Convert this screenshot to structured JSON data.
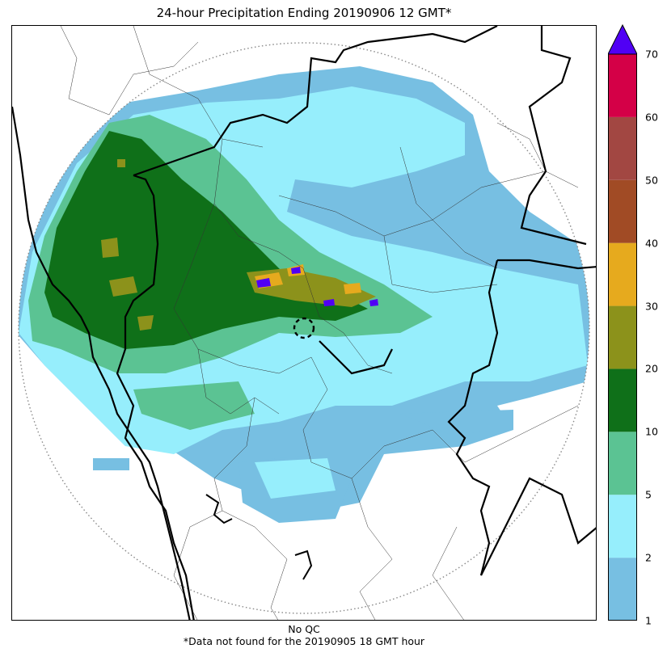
{
  "title": "24-hour Precipitation Ending 20190906 12 GMT*",
  "footer": {
    "qc_note": "No QC",
    "missing_note": "*Data not found for the 20190905 18 GMT hour"
  },
  "map": {
    "features": [
      "radar-range-ring",
      "state-borders",
      "district-borders",
      "coastline",
      "precipitation-field",
      "radar-site"
    ]
  },
  "colorbar": {
    "levels": [
      1,
      2,
      5,
      10,
      20,
      30,
      40,
      50,
      60,
      70
    ],
    "colors": [
      "#77bfe2",
      "#96eefc",
      "#5bc393",
      "#0f7019",
      "#8c921b",
      "#e6aa1e",
      "#a14b25",
      "#a24742",
      "#d40047"
    ],
    "extend_color": "#5000f5",
    "tick_labels": [
      "1",
      "2",
      "5",
      "10",
      "20",
      "30",
      "40",
      "50",
      "60",
      "70"
    ]
  }
}
